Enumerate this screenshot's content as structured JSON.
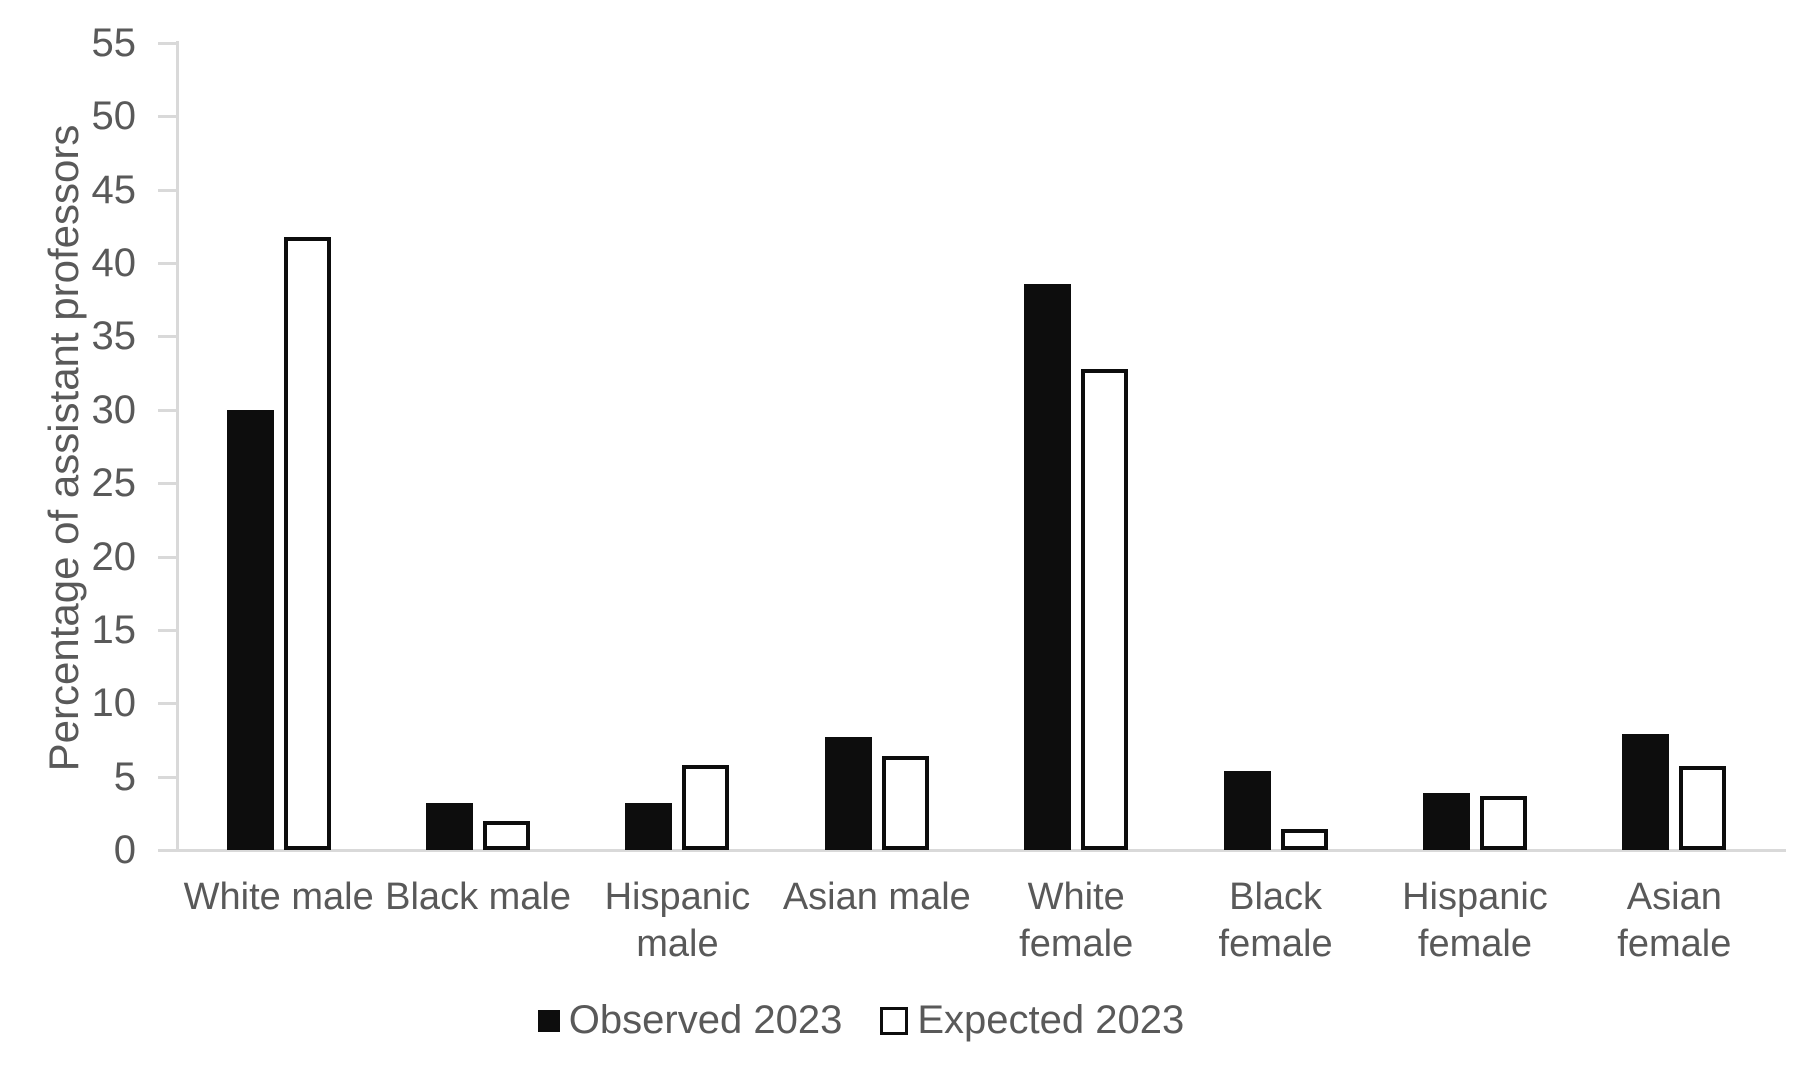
{
  "chart_data": {
    "type": "bar",
    "categories": [
      "White male",
      "Black male",
      "Hispanic male",
      "Asian male",
      "White female",
      "Black female",
      "Hispanic female",
      "Asian female"
    ],
    "category_label_lines": [
      [
        "White male"
      ],
      [
        "Black male"
      ],
      [
        "Hispanic",
        "male"
      ],
      [
        "Asian male"
      ],
      [
        "White",
        "female"
      ],
      [
        "Black female"
      ],
      [
        "Hispanic",
        "female"
      ],
      [
        "Asian female"
      ]
    ],
    "series": [
      {
        "name": "Observed 2023",
        "style": "filled",
        "values": [
          30.0,
          3.2,
          3.2,
          7.7,
          38.6,
          5.4,
          3.9,
          7.9
        ]
      },
      {
        "name": "Expected 2023",
        "style": "outlined",
        "values": [
          41.8,
          2.0,
          5.8,
          6.4,
          32.8,
          1.4,
          3.7,
          5.7
        ]
      }
    ],
    "ylabel": "Percentage of assistant professors",
    "xlabel": "",
    "ylim": [
      0,
      55
    ],
    "yticks": [
      0,
      5,
      10,
      15,
      20,
      25,
      30,
      35,
      40,
      45,
      50,
      55
    ],
    "grid": false,
    "legend_position": "bottom",
    "colors": {
      "bar_fill": "#0d0d0d",
      "bar_outline": "#0d0d0d",
      "axis_line": "#d9d9d9",
      "text": "#595959",
      "background": "#ffffff"
    }
  }
}
